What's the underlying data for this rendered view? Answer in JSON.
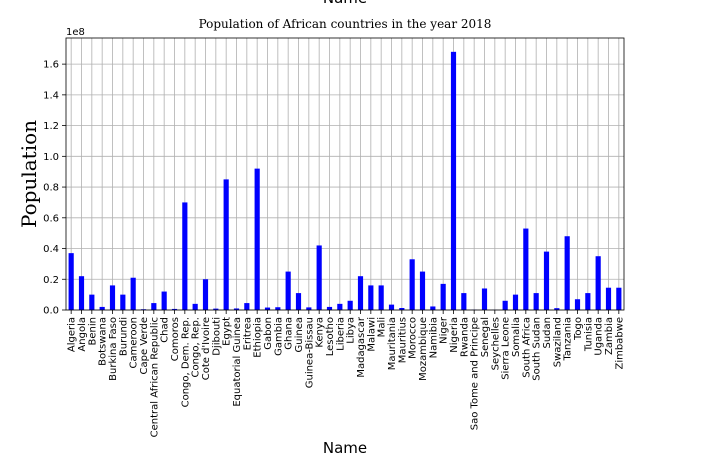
{
  "chart_data": {
    "type": "bar",
    "title": "Population of African countries in the year 2018",
    "x_label": "Name",
    "y_label": "Population",
    "offset_label": "1e8",
    "categories": [
      "Algeria",
      "Angola",
      "Benin",
      "Botswana",
      "Burkina Faso",
      "Burundi",
      "Cameroon",
      "Cape Verde",
      "Central African Republic",
      "Chad",
      "Comoros",
      "Congo, Dem. Rep.",
      "Congo, Rep.",
      "Cote d'Ivoire",
      "Djibouti",
      "Egypt",
      "Equatorial Guinea",
      "Eritrea",
      "Ethiopia",
      "Gabon",
      "Gambia",
      "Ghana",
      "Guinea",
      "Guinea-Bissau",
      "Kenya",
      "Lesotho",
      "Liberia",
      "Libya",
      "Madagascar",
      "Malawi",
      "Mali",
      "Mauritania",
      "Mauritius",
      "Morocco",
      "Mozambique",
      "Namibia",
      "Niger",
      "Nigeria",
      "Rwanda",
      "Sao Tome and Principe",
      "Senegal",
      "Seychelles",
      "Sierra Leone",
      "Somalia",
      "South Africa",
      "South Sudan",
      "Sudan",
      "Swaziland",
      "Tanzania",
      "Togo",
      "Tunisia",
      "Uganda",
      "Zambia",
      "Zimbabwe"
    ],
    "values": [
      0.37,
      0.22,
      0.1,
      0.02,
      0.16,
      0.1,
      0.21,
      0.005,
      0.045,
      0.12,
      0.007,
      0.7,
      0.04,
      0.2,
      0.009,
      0.85,
      0.01,
      0.045,
      0.92,
      0.016,
      0.018,
      0.25,
      0.11,
      0.017,
      0.42,
      0.02,
      0.04,
      0.06,
      0.22,
      0.16,
      0.16,
      0.035,
      0.013,
      0.33,
      0.25,
      0.023,
      0.17,
      1.68,
      0.11,
      0.002,
      0.14,
      0.001,
      0.06,
      0.1,
      0.53,
      0.11,
      0.38,
      0.012,
      0.48,
      0.07,
      0.11,
      0.35,
      0.145,
      0.145
    ],
    "color": "#0000ff",
    "ylim": [
      0,
      1.77
    ],
    "yticks": [
      {
        "value": 0,
        "label": "0.0"
      },
      0.2,
      0.4,
      0.6,
      0.8,
      {
        "value": 1,
        "label": "1.0"
      },
      1.2,
      1.4,
      1.6
    ],
    "grid": true
  }
}
